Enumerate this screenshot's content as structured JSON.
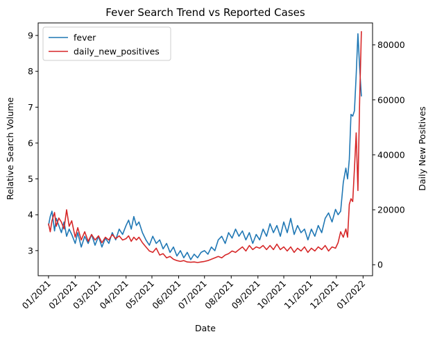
{
  "chart_data": {
    "type": "line",
    "title": "Fever Search Trend vs Reported Cases",
    "xlabel": "Date",
    "ylabel_left": "Relative Search Volume",
    "ylabel_right": "Daily New Positives",
    "x_ticks": [
      "2021-01-01",
      "2021-02-01",
      "2021-03-01",
      "2021-04-01",
      "2021-05-01",
      "2021-06-01",
      "2021-07-01",
      "2021-08-01",
      "2021-09-01",
      "2021-10-01",
      "2021-11-01",
      "2021-12-01",
      "2022-01-01"
    ],
    "x_tick_labels": [
      "01/2021",
      "02/2021",
      "03/2021",
      "04/2021",
      "05/2021",
      "06/2021",
      "07/2021",
      "08/2021",
      "09/2021",
      "10/2021",
      "11/2021",
      "12/2021",
      "01/2022"
    ],
    "xlim": [
      "2020-12-20",
      "2022-01-12"
    ],
    "ylim_left": [
      2.3,
      9.35
    ],
    "yticks_left": [
      3,
      4,
      5,
      6,
      7,
      8,
      9
    ],
    "ylim_right": [
      -4000,
      88000
    ],
    "yticks_right": [
      0,
      20000,
      40000,
      60000,
      80000
    ],
    "ytick_labels_right": [
      "0",
      "20000",
      "40000",
      "60000",
      "80000"
    ],
    "legend": {
      "placement": "upper-left"
    },
    "grid": false,
    "series": [
      {
        "name": "fever",
        "axis": "left",
        "color": "#1f77b4",
        "x": [
          "2021-01-01",
          "2021-01-03",
          "2021-01-05",
          "2021-01-08",
          "2021-01-10",
          "2021-01-13",
          "2021-01-16",
          "2021-01-19",
          "2021-01-22",
          "2021-01-25",
          "2021-01-28",
          "2021-02-01",
          "2021-02-04",
          "2021-02-08",
          "2021-02-12",
          "2021-02-16",
          "2021-02-20",
          "2021-02-24",
          "2021-02-28",
          "2021-03-04",
          "2021-03-08",
          "2021-03-12",
          "2021-03-16",
          "2021-03-20",
          "2021-03-24",
          "2021-03-28",
          "2021-04-01",
          "2021-04-04",
          "2021-04-07",
          "2021-04-10",
          "2021-04-13",
          "2021-04-16",
          "2021-04-20",
          "2021-04-24",
          "2021-04-28",
          "2021-05-02",
          "2021-05-06",
          "2021-05-10",
          "2021-05-14",
          "2021-05-18",
          "2021-05-22",
          "2021-05-26",
          "2021-05-30",
          "2021-06-03",
          "2021-06-07",
          "2021-06-11",
          "2021-06-15",
          "2021-06-19",
          "2021-06-23",
          "2021-06-27",
          "2021-07-01",
          "2021-07-05",
          "2021-07-09",
          "2021-07-13",
          "2021-07-17",
          "2021-07-21",
          "2021-07-25",
          "2021-07-29",
          "2021-08-02",
          "2021-08-06",
          "2021-08-10",
          "2021-08-14",
          "2021-08-18",
          "2021-08-22",
          "2021-08-26",
          "2021-08-30",
          "2021-09-03",
          "2021-09-07",
          "2021-09-11",
          "2021-09-15",
          "2021-09-19",
          "2021-09-23",
          "2021-09-27",
          "2021-10-01",
          "2021-10-05",
          "2021-10-09",
          "2021-10-13",
          "2021-10-17",
          "2021-10-21",
          "2021-10-25",
          "2021-10-29",
          "2021-11-02",
          "2021-11-06",
          "2021-11-10",
          "2021-11-14",
          "2021-11-18",
          "2021-11-22",
          "2021-11-26",
          "2021-11-30",
          "2021-12-03",
          "2021-12-06",
          "2021-12-09",
          "2021-12-12",
          "2021-12-14",
          "2021-12-16",
          "2021-12-18",
          "2021-12-20",
          "2021-12-22",
          "2021-12-24",
          "2021-12-26",
          "2021-12-28",
          "2021-12-30"
        ],
        "values": [
          3.7,
          3.95,
          4.1,
          3.55,
          3.9,
          3.7,
          3.5,
          3.8,
          3.4,
          3.6,
          3.45,
          3.2,
          3.5,
          3.1,
          3.4,
          3.2,
          3.45,
          3.15,
          3.4,
          3.1,
          3.35,
          3.2,
          3.5,
          3.3,
          3.6,
          3.45,
          3.7,
          3.85,
          3.6,
          3.95,
          3.7,
          3.8,
          3.5,
          3.3,
          3.15,
          3.4,
          3.2,
          3.3,
          3.05,
          3.2,
          2.95,
          3.1,
          2.85,
          3.0,
          2.8,
          2.95,
          2.75,
          2.9,
          2.8,
          2.95,
          3.0,
          2.9,
          3.1,
          3.0,
          3.3,
          3.4,
          3.2,
          3.5,
          3.35,
          3.6,
          3.4,
          3.55,
          3.3,
          3.5,
          3.2,
          3.45,
          3.3,
          3.6,
          3.4,
          3.75,
          3.5,
          3.7,
          3.4,
          3.8,
          3.5,
          3.9,
          3.45,
          3.7,
          3.5,
          3.6,
          3.3,
          3.6,
          3.4,
          3.7,
          3.5,
          3.9,
          4.05,
          3.8,
          4.15,
          4.0,
          4.1,
          4.9,
          5.3,
          5.0,
          5.55,
          6.8,
          6.75,
          6.9,
          7.9,
          9.05,
          8.1,
          7.3
        ]
      },
      {
        "name": "daily_new_positives",
        "axis": "right",
        "color": "#d62728",
        "x": [
          "2021-01-01",
          "2021-01-03",
          "2021-01-05",
          "2021-01-08",
          "2021-01-10",
          "2021-01-13",
          "2021-01-16",
          "2021-01-19",
          "2021-01-22",
          "2021-01-25",
          "2021-01-28",
          "2021-02-01",
          "2021-02-04",
          "2021-02-08",
          "2021-02-12",
          "2021-02-16",
          "2021-02-20",
          "2021-02-24",
          "2021-02-28",
          "2021-03-04",
          "2021-03-08",
          "2021-03-12",
          "2021-03-16",
          "2021-03-20",
          "2021-03-24",
          "2021-03-28",
          "2021-04-01",
          "2021-04-04",
          "2021-04-07",
          "2021-04-10",
          "2021-04-13",
          "2021-04-16",
          "2021-04-20",
          "2021-04-24",
          "2021-04-28",
          "2021-05-02",
          "2021-05-06",
          "2021-05-10",
          "2021-05-14",
          "2021-05-18",
          "2021-05-22",
          "2021-05-26",
          "2021-05-30",
          "2021-06-03",
          "2021-06-07",
          "2021-06-11",
          "2021-06-15",
          "2021-06-19",
          "2021-06-23",
          "2021-06-27",
          "2021-07-01",
          "2021-07-05",
          "2021-07-09",
          "2021-07-13",
          "2021-07-17",
          "2021-07-21",
          "2021-07-25",
          "2021-07-29",
          "2021-08-02",
          "2021-08-06",
          "2021-08-10",
          "2021-08-14",
          "2021-08-18",
          "2021-08-22",
          "2021-08-26",
          "2021-08-30",
          "2021-09-03",
          "2021-09-07",
          "2021-09-11",
          "2021-09-15",
          "2021-09-19",
          "2021-09-23",
          "2021-09-27",
          "2021-10-01",
          "2021-10-05",
          "2021-10-09",
          "2021-10-13",
          "2021-10-17",
          "2021-10-21",
          "2021-10-25",
          "2021-10-29",
          "2021-11-02",
          "2021-11-06",
          "2021-11-10",
          "2021-11-14",
          "2021-11-18",
          "2021-11-22",
          "2021-11-26",
          "2021-11-30",
          "2021-12-03",
          "2021-12-06",
          "2021-12-09",
          "2021-12-12",
          "2021-12-14",
          "2021-12-16",
          "2021-12-18",
          "2021-12-20",
          "2021-12-22",
          "2021-12-24",
          "2021-12-26",
          "2021-12-28",
          "2021-12-30"
        ],
        "values": [
          15000,
          12000,
          16000,
          19000,
          14000,
          17000,
          15500,
          13000,
          20000,
          14000,
          16000,
          10000,
          13500,
          9000,
          12000,
          8500,
          11000,
          9000,
          10500,
          8000,
          10000,
          9000,
          11000,
          9500,
          10500,
          9000,
          9500,
          10500,
          8500,
          10000,
          9000,
          10000,
          8000,
          6500,
          5000,
          4500,
          6000,
          3500,
          4000,
          2500,
          3000,
          2000,
          1500,
          1200,
          1500,
          1000,
          900,
          1000,
          800,
          1000,
          1200,
          1500,
          2000,
          2500,
          3000,
          2500,
          3500,
          4000,
          5000,
          4500,
          5500,
          6500,
          5000,
          7000,
          5500,
          6500,
          6000,
          7000,
          5500,
          7000,
          5500,
          7500,
          5500,
          6500,
          5000,
          6500,
          4500,
          6000,
          5000,
          6500,
          4500,
          6000,
          5000,
          6500,
          5500,
          7000,
          5000,
          6500,
          6000,
          8000,
          12000,
          10000,
          13000,
          10000,
          22000,
          24000,
          23000,
          35000,
          48000,
          27000,
          60000,
          85000
        ]
      }
    ]
  }
}
